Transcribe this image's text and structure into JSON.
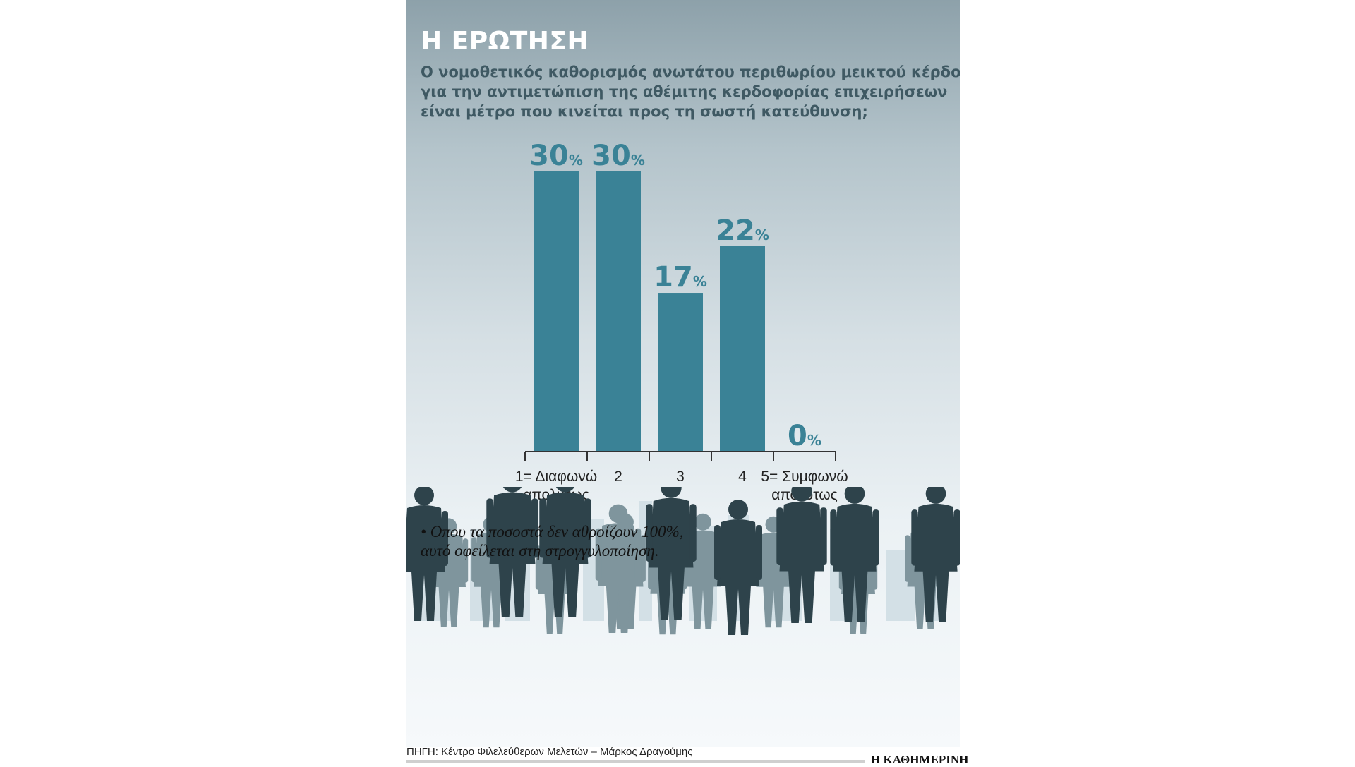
{
  "title": "Η ΕΡΩΤΗΣΗ",
  "question_lines": [
    "Ο νομοθετικός καθορισμός ανωτάτου περιθωρίου μεικτού κέρδους",
    "για την αντιμετώπιση της αθέμιτης κερδοφορίας επιχειρήσεων",
    "είναι μέτρο που κινείται προς τη σωστή κατεύθυνση;"
  ],
  "chart_data": {
    "type": "bar",
    "categories": [
      [
        "1= Διαφωνώ",
        "απολύτως"
      ],
      [
        "2"
      ],
      [
        "3"
      ],
      [
        "4"
      ],
      [
        "5= Συμφωνώ",
        "απολύτως"
      ]
    ],
    "values": [
      30,
      30,
      17,
      22,
      0
    ],
    "value_labels": [
      "30",
      "30",
      "17",
      "22",
      "0"
    ],
    "unit": "%",
    "ylim": [
      0,
      30
    ],
    "grid": false,
    "bar_color": "#3a8296",
    "label_color": "#3a8296",
    "axis_color": "#333333"
  },
  "footnote_lines": [
    "• Οπου τα ποσοστά δεν αθροίζουν 100%,",
    "αυτό οφείλεται στη στρογγυλοποίηση."
  ],
  "source": "ΠΗΓΗ: Κέντρο Φιλελεύθερων Μελετών – Μάρκος Δραγούμης",
  "brand": "Η ΚΑΘΗΜΕΡΙΝΗ",
  "colors": {
    "title": "#ffffff",
    "question": "#3f5963",
    "silhouette_dark": "#2e434b",
    "silhouette_light": "#7f959d",
    "skyline": "#d3e0e6"
  }
}
